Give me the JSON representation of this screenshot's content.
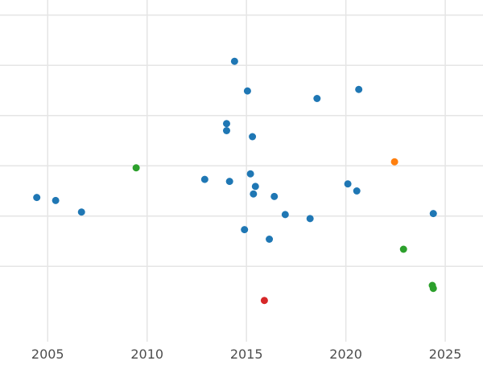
{
  "chart_data": {
    "type": "scatter",
    "title": "",
    "xlabel": "",
    "ylabel": "",
    "xlim": [
      2002.6,
      2026.9
    ],
    "ylim": [
      -0.5,
      6.3
    ],
    "x_ticks": [
      2005,
      2010,
      2015,
      2020,
      2025
    ],
    "x_tick_labels": [
      "2005",
      "2010",
      "2015",
      "2020",
      "2025"
    ],
    "y_grid": [
      1,
      2,
      3,
      4,
      5,
      6
    ],
    "y_tick_labels_visible": false,
    "grid": true,
    "legend": "none",
    "series": [
      {
        "color": "#1f77b4",
        "points": [
          {
            "x": 2004.45,
            "y": 2.37
          },
          {
            "x": 2005.4,
            "y": 2.31
          },
          {
            "x": 2006.7,
            "y": 2.08
          },
          {
            "x": 2012.9,
            "y": 2.73
          },
          {
            "x": 2014.0,
            "y": 3.84
          },
          {
            "x": 2014.0,
            "y": 3.7
          },
          {
            "x": 2014.15,
            "y": 2.69
          },
          {
            "x": 2014.4,
            "y": 5.08
          },
          {
            "x": 2014.9,
            "y": 1.73
          },
          {
            "x": 2015.05,
            "y": 4.49
          },
          {
            "x": 2015.2,
            "y": 2.84
          },
          {
            "x": 2015.3,
            "y": 3.58
          },
          {
            "x": 2015.35,
            "y": 2.44
          },
          {
            "x": 2015.45,
            "y": 2.59
          },
          {
            "x": 2016.15,
            "y": 1.54
          },
          {
            "x": 2016.4,
            "y": 2.39
          },
          {
            "x": 2016.95,
            "y": 2.03
          },
          {
            "x": 2018.2,
            "y": 1.95
          },
          {
            "x": 2018.55,
            "y": 4.34
          },
          {
            "x": 2020.1,
            "y": 2.64
          },
          {
            "x": 2020.55,
            "y": 2.5
          },
          {
            "x": 2020.65,
            "y": 4.52
          },
          {
            "x": 2024.4,
            "y": 2.05
          }
        ]
      },
      {
        "color": "#2ca02c",
        "points": [
          {
            "x": 2009.45,
            "y": 2.96
          },
          {
            "x": 2022.9,
            "y": 1.34
          },
          {
            "x": 2024.35,
            "y": 0.62
          },
          {
            "x": 2024.4,
            "y": 0.56
          }
        ]
      },
      {
        "color": "#ff7f0e",
        "points": [
          {
            "x": 2022.45,
            "y": 3.08
          }
        ]
      },
      {
        "color": "#d62728",
        "points": [
          {
            "x": 2015.9,
            "y": 0.32
          }
        ]
      }
    ]
  }
}
